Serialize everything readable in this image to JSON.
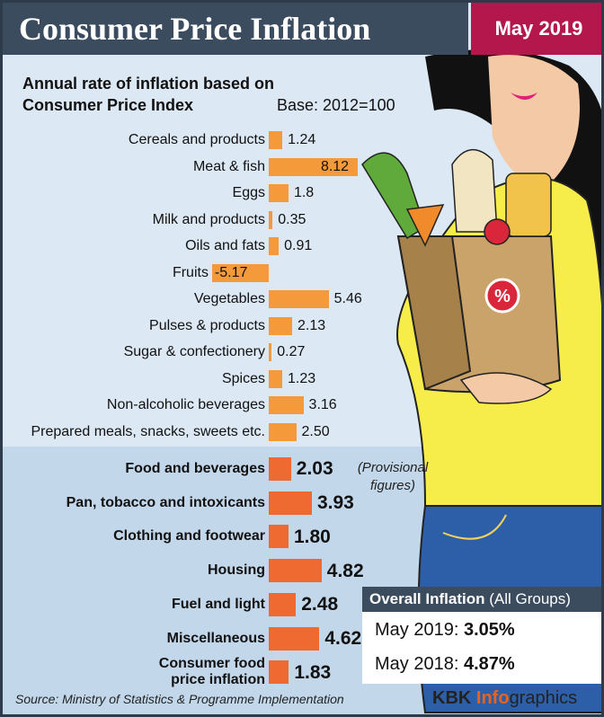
{
  "header": {
    "title": "Consumer Price Inflation",
    "date": "May 2019"
  },
  "subtitle": "Annual rate of inflation based on Consumer Price Index",
  "base": "Base: 2012=100",
  "chart_data": [
    {
      "type": "bar",
      "orientation": "horizontal",
      "color": "#f59a3a",
      "categories": [
        "Cereals and products",
        "Meat & fish",
        "Eggs",
        "Milk and products",
        "Oils and fats",
        "Fruits",
        "Vegetables",
        "Pulses & products",
        "Sugar & confectionery",
        "Spices",
        "Non-alcoholic beverages",
        "Prepared meals, snacks, sweets etc."
      ],
      "values": [
        1.24,
        8.12,
        1.8,
        0.35,
        0.91,
        -5.17,
        5.46,
        2.13,
        0.27,
        1.23,
        3.16,
        2.5
      ],
      "value_labels": [
        "1.24",
        "8.12",
        "1.8",
        "0.35",
        "0.91",
        "-5.17",
        "5.46",
        "2.13",
        "0.27",
        "1.23",
        "3.16",
        "2.50"
      ]
    },
    {
      "type": "bar",
      "orientation": "horizontal",
      "color": "#ee6a30",
      "categories": [
        "Food and beverages",
        "Pan, tobacco and intoxicants",
        "Clothing and footwear",
        "Housing",
        "Fuel and light",
        "Miscellaneous",
        "Consumer food price inflation"
      ],
      "values": [
        2.03,
        3.93,
        1.8,
        4.82,
        2.48,
        4.62,
        1.83
      ],
      "value_labels": [
        "2.03",
        "3.93",
        "1.80",
        "4.82",
        "2.48",
        "4.62",
        "1.83"
      ],
      "note": "(Provisional figures)"
    }
  ],
  "overall": {
    "title": "Overall Inflation",
    "scope": "(All Groups)",
    "rows": [
      {
        "label": "May 2019:",
        "value": "3.05%"
      },
      {
        "label": "May 2018:",
        "value": "4.87%"
      }
    ]
  },
  "source": "Source: Ministry of Statistics & Programme Implementation",
  "brand": {
    "name": "KBK",
    "highlight": "Info",
    "rest": "graphics"
  }
}
